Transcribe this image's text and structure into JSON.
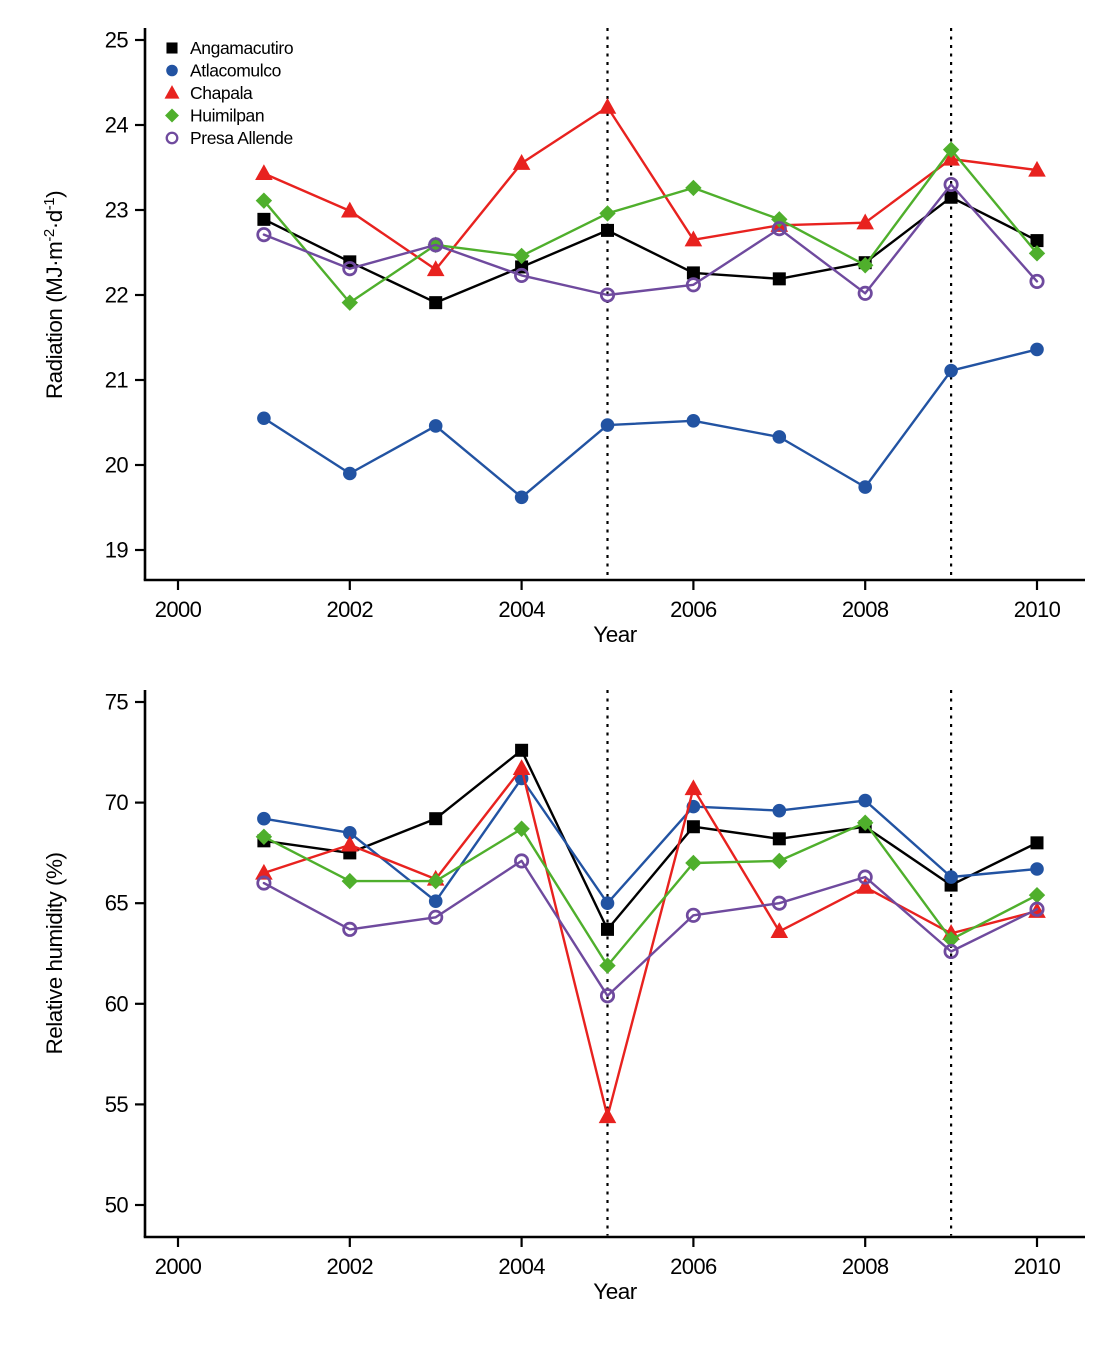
{
  "figure": {
    "background": "#ffffff",
    "colors": {
      "black": "#000000",
      "blue": "#2253A2",
      "red": "#E8221F",
      "green": "#4FAF2C",
      "purple": "#6F4A9E"
    }
  },
  "chart_data": [
    {
      "type": "line",
      "title": "",
      "xlabel": "Year",
      "ylabel": "Radiation (MJ·m⁻²·d⁻¹)",
      "ylabel_rich": [
        {
          "text": "Radiation (MJ·m",
          "sup": false
        },
        {
          "text": "-2",
          "sup": true
        },
        {
          "text": "·d",
          "sup": false
        },
        {
          "text": "-1",
          "sup": true
        },
        {
          "text": ")",
          "sup": false
        }
      ],
      "x": [
        2001,
        2002,
        2003,
        2004,
        2005,
        2006,
        2007,
        2008,
        2009,
        2010
      ],
      "xticks": [
        2000,
        2002,
        2004,
        2006,
        2008,
        2010
      ],
      "yticks": [
        19,
        20,
        21,
        22,
        23,
        24,
        25
      ],
      "xlim": [
        1999.6,
        2010.6
      ],
      "ylim": [
        18.65,
        25.15
      ],
      "grid": false,
      "legend_position": "top-left-inside",
      "show_legend": true,
      "reference_lines_x": [
        2005,
        2009
      ],
      "series": [
        {
          "name": "Angamacutiro",
          "marker": "square",
          "color_key": "black",
          "values": [
            22.89,
            22.39,
            21.91,
            22.33,
            22.76,
            22.26,
            22.19,
            22.38,
            23.15,
            22.64
          ]
        },
        {
          "name": "Atlacomulco",
          "marker": "circle",
          "color_key": "blue",
          "values": [
            20.55,
            19.9,
            20.46,
            19.62,
            20.47,
            20.52,
            20.33,
            19.74,
            21.11,
            21.36
          ]
        },
        {
          "name": "Chapala",
          "marker": "triangle",
          "color_key": "red",
          "values": [
            23.43,
            22.99,
            22.3,
            23.55,
            24.21,
            22.65,
            22.82,
            22.85,
            23.6,
            23.47
          ]
        },
        {
          "name": "Huimilpan",
          "marker": "diamond",
          "color_key": "green",
          "values": [
            23.11,
            21.91,
            22.59,
            22.46,
            22.96,
            23.26,
            22.89,
            22.35,
            23.71,
            22.49
          ]
        },
        {
          "name": "Presa Allende",
          "marker": "open-circle",
          "color_key": "purple",
          "values": [
            22.71,
            22.31,
            22.59,
            22.23,
            22.0,
            22.12,
            22.78,
            22.02,
            23.3,
            22.16
          ]
        }
      ]
    },
    {
      "type": "line",
      "title": "",
      "xlabel": "Year",
      "ylabel": "Relative humidity (%)",
      "ylabel_rich": [
        {
          "text": "Relative humidity (%)",
          "sup": false
        }
      ],
      "x": [
        2001,
        2002,
        2003,
        2004,
        2005,
        2006,
        2007,
        2008,
        2009,
        2010
      ],
      "xticks": [
        2000,
        2002,
        2004,
        2006,
        2008,
        2010
      ],
      "yticks": [
        50,
        55,
        60,
        65,
        70,
        75
      ],
      "xlim": [
        1999.6,
        2010.6
      ],
      "ylim": [
        48.4,
        75.6
      ],
      "grid": false,
      "legend_position": "none",
      "show_legend": false,
      "reference_lines_x": [
        2005,
        2009
      ],
      "series": [
        {
          "name": "Angamacutiro",
          "marker": "square",
          "color_key": "black",
          "values": [
            68.1,
            67.5,
            69.2,
            72.6,
            63.7,
            68.8,
            68.2,
            68.8,
            65.9,
            68.0
          ]
        },
        {
          "name": "Atlacomulco",
          "marker": "circle",
          "color_key": "blue",
          "values": [
            69.2,
            68.5,
            65.1,
            71.2,
            65.0,
            69.8,
            69.6,
            70.1,
            66.3,
            66.7
          ]
        },
        {
          "name": "Chapala",
          "marker": "triangle",
          "color_key": "red",
          "values": [
            66.5,
            67.9,
            66.2,
            71.7,
            54.4,
            70.7,
            63.6,
            65.8,
            63.5,
            64.6
          ]
        },
        {
          "name": "Huimilpan",
          "marker": "diamond",
          "color_key": "green",
          "values": [
            68.3,
            66.1,
            66.1,
            68.7,
            61.9,
            67.0,
            67.1,
            69.0,
            63.2,
            65.4
          ]
        },
        {
          "name": "Presa Allende",
          "marker": "open-circle",
          "color_key": "purple",
          "values": [
            66.0,
            63.7,
            64.3,
            67.1,
            60.4,
            64.4,
            65.0,
            66.3,
            62.6,
            64.7
          ]
        }
      ]
    }
  ]
}
